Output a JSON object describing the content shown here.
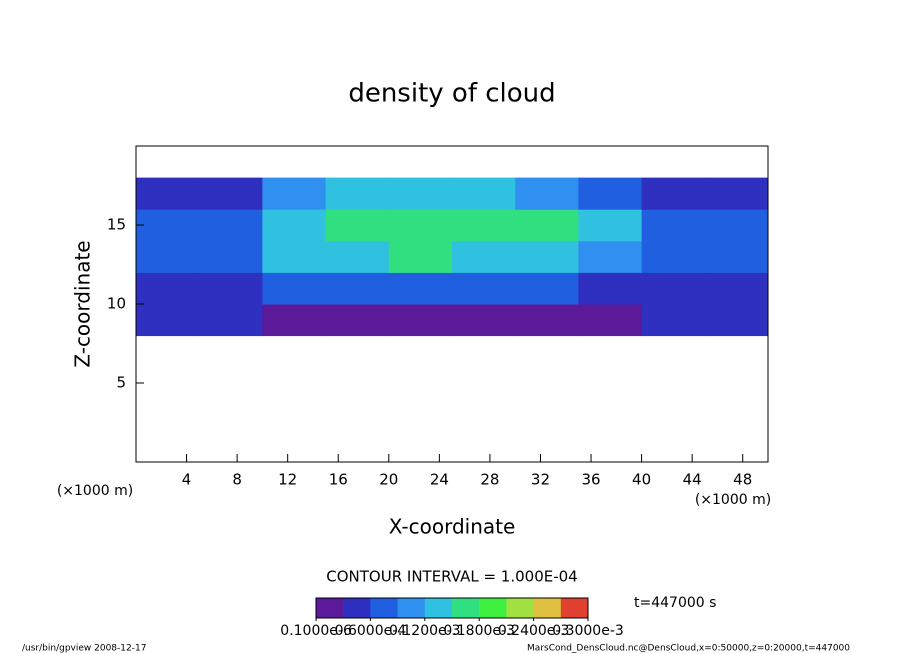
{
  "chart_data": {
    "type": "heatmap",
    "title": "density of cloud",
    "x_label": "X-coordinate",
    "y_label": "Z-coordinate",
    "x_unit": "(×1000 m)",
    "y_unit": "(×1000 m)",
    "xlim": [
      0,
      50
    ],
    "xticks": [
      4,
      8,
      12,
      16,
      20,
      24,
      28,
      32,
      36,
      40,
      44,
      48
    ],
    "ylim": [
      0,
      20
    ],
    "yticks": [
      5,
      10,
      15
    ],
    "x_edges": [
      0,
      5,
      10,
      15,
      20,
      25,
      30,
      35,
      40,
      45,
      50
    ],
    "y_edges": [
      8,
      10,
      12,
      14,
      16,
      18
    ],
    "values": [
      [
        3e-05,
        3e-05,
        2e-05,
        2e-05,
        2e-05,
        2e-05,
        2e-05,
        2e-05,
        3e-05,
        3e-05
      ],
      [
        5e-05,
        4e-05,
        6e-05,
        7e-05,
        7e-05,
        7e-05,
        6e-05,
        5e-05,
        4e-05,
        5e-05
      ],
      [
        6e-05,
        6e-05,
        0.00012,
        0.00014,
        0.00015,
        0.00014,
        0.00013,
        9e-05,
        6e-05,
        6e-05
      ],
      [
        6e-05,
        7e-05,
        0.00013,
        0.00016,
        0.00017,
        0.00016,
        0.00015,
        0.00012,
        7e-05,
        6e-05
      ],
      [
        4e-05,
        4e-05,
        0.0001,
        0.00013,
        0.00013,
        0.00013,
        0.00011,
        8e-05,
        5e-05,
        4e-05
      ]
    ],
    "colors": [
      "#5a1a9a",
      "#3030c0",
      "#2060e0",
      "#3090f0",
      "#30c0e0",
      "#30e080",
      "#40f040",
      "#a0e040",
      "#e0c040",
      "#e04030"
    ],
    "clim": [
      0,
      0.0003
    ],
    "cticks": [
      {
        "value": 1e-07,
        "label": "0.1000e-6"
      },
      {
        "value": 6e-05,
        "label": "0.6000e-4"
      },
      {
        "value": 0.00012,
        "label": "0.1200e-3"
      },
      {
        "value": 0.00018,
        "label": "0.1800e-3"
      },
      {
        "value": 0.00024,
        "label": "0.2400e-3"
      },
      {
        "value": 0.0003,
        "label": "0.3000e-3"
      }
    ],
    "contour_note": "CONTOUR INTERVAL = 1.000E-04",
    "time_note": "t=447000 s",
    "footer_left": "/usr/bin/gpview  2008-12-17",
    "footer_right": "MarsCond_DensCloud.nc@DensCloud,x=0:50000,z=0:20000,t=447000"
  }
}
